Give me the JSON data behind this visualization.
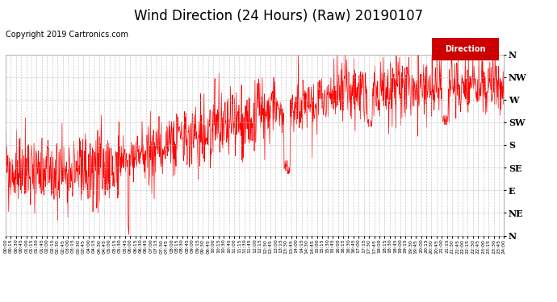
{
  "title": "Wind Direction (24 Hours) (Raw) 20190107",
  "copyright": "Copyright 2019 Cartronics.com",
  "legend_label": "Direction",
  "line_color": "#ff0000",
  "background_color": "#ffffff",
  "grid_color": "#bbbbbb",
  "ytick_labels": [
    "N",
    "NW",
    "W",
    "SW",
    "S",
    "SE",
    "E",
    "NE",
    "N"
  ],
  "ytick_values": [
    360,
    315,
    270,
    225,
    180,
    135,
    90,
    45,
    0
  ],
  "ylim": [
    0,
    360
  ],
  "title_fontsize": 12,
  "copyright_fontsize": 7,
  "num_points": 1440,
  "random_seed": 99
}
